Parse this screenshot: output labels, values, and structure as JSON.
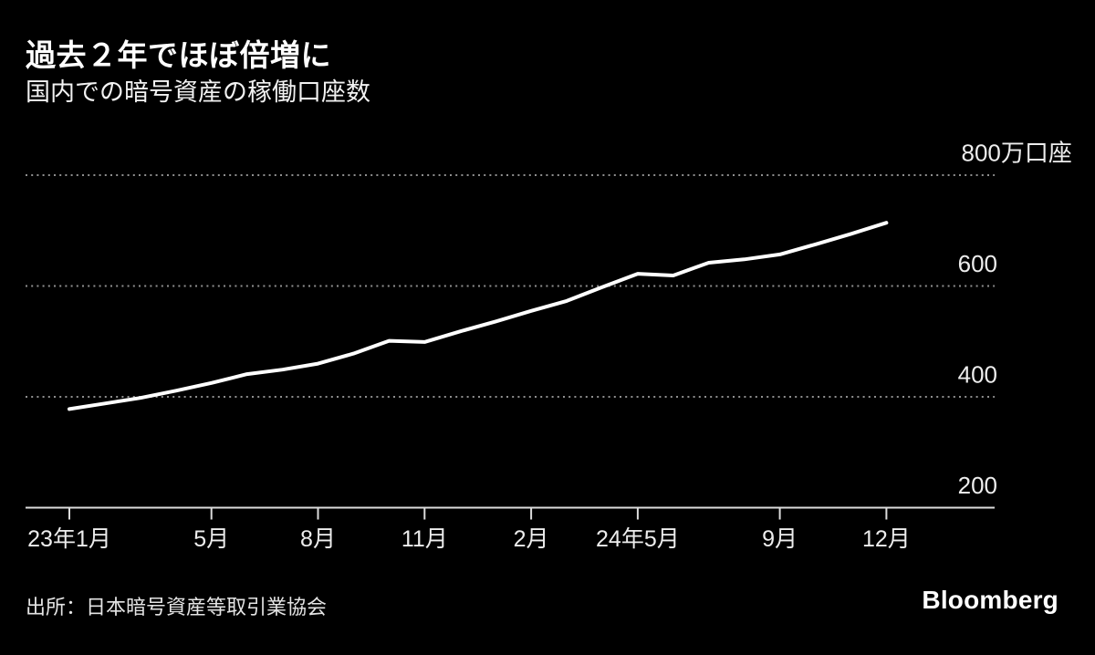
{
  "header": {
    "title": "過去２年でほぼ倍増に",
    "subtitle": "国内での暗号資産の稼働口座数"
  },
  "chart_data": {
    "type": "line",
    "title": "過去２年でほぼ倍増に",
    "subtitle": "国内での暗号資産の稼働口座数",
    "series_name": "稼働口座数",
    "unit": "万口座",
    "categories": [
      "23年1月",
      "23年2月",
      "23年3月",
      "23年4月",
      "23年5月",
      "23年6月",
      "23年7月",
      "23年8月",
      "23年9月",
      "23年10月",
      "23年11月",
      "23年12月",
      "24年1月",
      "24年2月",
      "24年3月",
      "24年4月",
      "24年5月",
      "24年6月",
      "24年7月",
      "24年8月",
      "24年9月",
      "24年10月",
      "24年11月",
      "24年12月"
    ],
    "values": [
      378,
      388,
      398,
      411,
      425,
      441,
      449,
      460,
      478,
      501,
      499,
      518,
      536,
      555,
      573,
      598,
      622,
      619,
      642,
      648,
      657,
      675,
      694,
      714
    ],
    "ylim": [
      200,
      800
    ],
    "gridline_values": [
      800,
      600,
      400
    ],
    "y_ticks": [
      {
        "value": 800,
        "label": "800万口座"
      },
      {
        "value": 600,
        "label": "600"
      },
      {
        "value": 400,
        "label": "400"
      },
      {
        "value": 200,
        "label": "200"
      }
    ],
    "x_ticks": [
      {
        "index": 0,
        "label": "23年1月"
      },
      {
        "index": 4,
        "label": "5月"
      },
      {
        "index": 7,
        "label": "8月"
      },
      {
        "index": 10,
        "label": "11月"
      },
      {
        "index": 13,
        "label": "2月"
      },
      {
        "index": 16,
        "label": "24年5月"
      },
      {
        "index": 20,
        "label": "9月"
      },
      {
        "index": 23,
        "label": "12月"
      }
    ],
    "grid_style": "dotted",
    "legend": "none"
  },
  "colors": {
    "background": "#000000",
    "line": "#ffffff",
    "grid": "#8f8f8f",
    "axis": "#dcdcdc",
    "tick_label": "#ededed",
    "title": "#ffffff"
  },
  "footer": {
    "source": "出所：日本暗号資産等取引業協会",
    "brand": "Bloomberg"
  }
}
